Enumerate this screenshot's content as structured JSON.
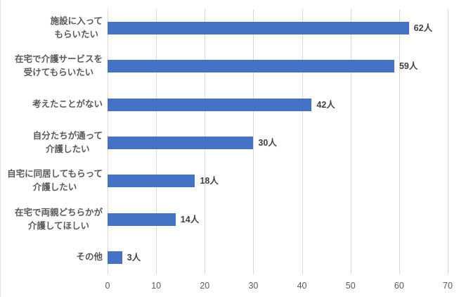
{
  "chart_data": {
    "type": "bar",
    "orientation": "horizontal",
    "title": "",
    "xlabel": "",
    "ylabel": "",
    "categories": [
      "施設に入って\nもらいたい",
      "在宅で介護サービスを\n受けてもらいたい",
      "考えたことがない",
      "自分たちが通って\n介護したい",
      "自宅に同居してもらって\n介護したい",
      "在宅で両親どちらかが\n介護してほしい",
      "その他"
    ],
    "values": [
      62,
      59,
      42,
      30,
      18,
      14,
      3
    ],
    "data_labels": [
      "62人",
      "59人",
      "42人",
      "30人",
      "18人",
      "14人",
      "3人"
    ],
    "unit_suffix": "人",
    "xlim": [
      0,
      70
    ],
    "x_ticks": [
      0,
      10,
      20,
      30,
      40,
      50,
      60,
      70
    ],
    "grid": true,
    "legend": false,
    "colors": {
      "bar": "#4472c4",
      "gridline": "#d9d9d9",
      "axis_text": "#595959",
      "category_text": "#595959",
      "data_label_text": "#404040",
      "background": "#ffffff"
    }
  }
}
